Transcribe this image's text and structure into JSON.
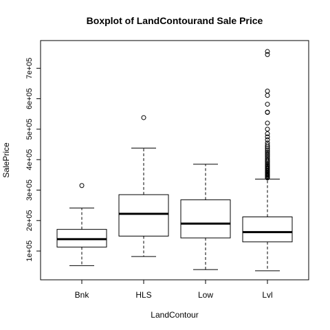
{
  "chart_data": {
    "type": "box",
    "title": "Boxplot of LandContourand Sale Price",
    "xlabel": "LandContour",
    "ylabel": "SalePrice",
    "ylim": [
      0,
      800000
    ],
    "yticks": [
      100000,
      200000,
      300000,
      400000,
      500000,
      600000,
      700000
    ],
    "ytick_labels": [
      "1e+05",
      "2e+05",
      "3e+05",
      "4e+05",
      "5e+05",
      "6e+05",
      "7e+05"
    ],
    "categories": [
      "Bnk",
      "HLS",
      "Low",
      "Lvl"
    ],
    "boxes": [
      {
        "category": "Bnk",
        "whisker_low": 52000,
        "q1": 113000,
        "median": 139000,
        "q3": 171000,
        "whisker_high": 241000,
        "outliers": [
          315000
        ]
      },
      {
        "category": "HLS",
        "whisker_low": 82000,
        "q1": 149000,
        "median": 222000,
        "q3": 285000,
        "whisker_high": 438000,
        "outliers": [
          538000
        ]
      },
      {
        "category": "Low",
        "whisker_low": 39000,
        "q1": 143000,
        "median": 190000,
        "q3": 268000,
        "whisker_high": 385000,
        "outliers": []
      },
      {
        "category": "Lvl",
        "whisker_low": 35000,
        "q1": 130000,
        "median": 162000,
        "q3": 212000,
        "whisker_high": 336000,
        "outliers": [
          340000,
          342000,
          345000,
          348000,
          350000,
          352000,
          355000,
          358000,
          360000,
          363000,
          366000,
          370000,
          373000,
          377000,
          380000,
          384000,
          388000,
          392000,
          396000,
          400000,
          405000,
          410000,
          415000,
          420000,
          425000,
          430000,
          436000,
          442000,
          448000,
          455000,
          465000,
          475000,
          485000,
          500000,
          520000,
          555000,
          556000,
          582000,
          611000,
          625000,
          745000,
          755000
        ]
      }
    ]
  }
}
